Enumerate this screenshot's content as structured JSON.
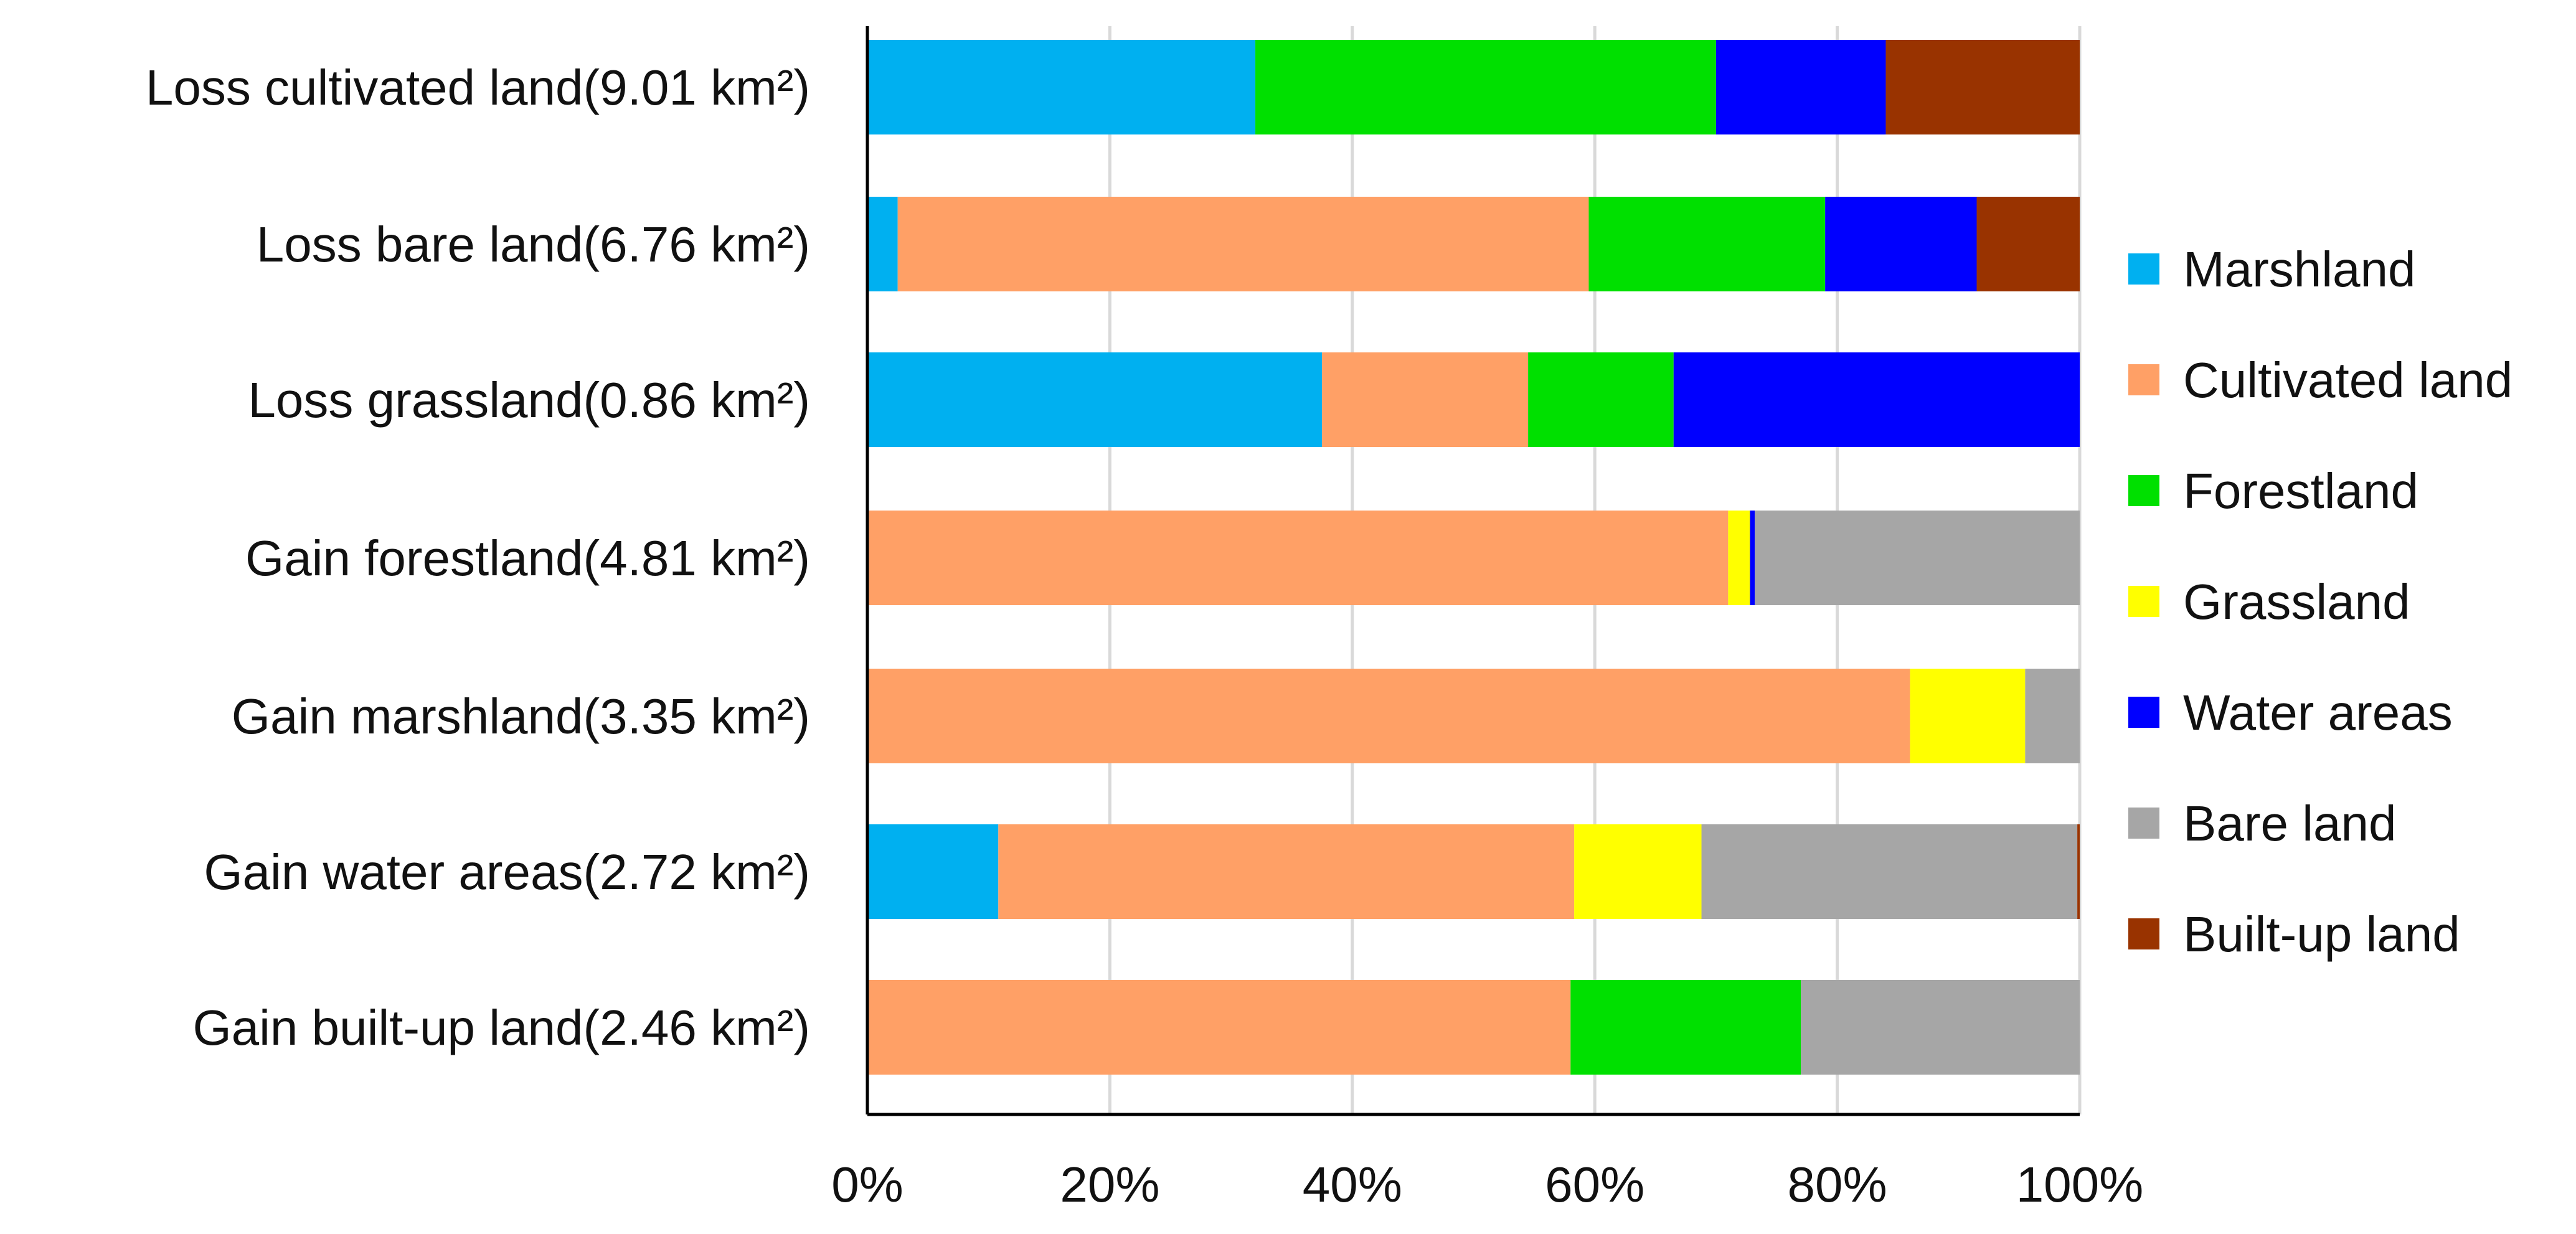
{
  "chart_data": {
    "type": "bar",
    "orientation": "horizontal",
    "stacked": "percent",
    "title": "",
    "xlabel": "",
    "ylabel": "",
    "xlim": [
      0,
      100
    ],
    "x_ticks": [
      "0%",
      "20%",
      "40%",
      "60%",
      "80%",
      "100%"
    ],
    "grid": "vertical",
    "legend_position": "right",
    "categories": [
      "Loss cultivated land(9.01 km²)",
      "Loss bare land(6.76 km²)",
      "Loss grassland(0.86 km²)",
      "Gain forestland(4.81 km²)",
      "Gain marshland(3.35 km²)",
      "Gain water areas(2.72 km²)",
      "Gain built-up land(2.46 km²)"
    ],
    "series": [
      {
        "name": "Marshland",
        "color": "#00B0F0",
        "values": [
          32,
          2.5,
          37.5,
          0,
          0,
          10.8,
          0
        ]
      },
      {
        "name": "Cultivated land",
        "color": "#FFA066",
        "values": [
          0,
          57,
          17,
          71,
          86,
          47.5,
          58
        ]
      },
      {
        "name": "Forestland",
        "color": "#00E000",
        "values": [
          38,
          19.5,
          12,
          0,
          0,
          0,
          19
        ]
      },
      {
        "name": "Grassland",
        "color": "#FFFF00",
        "values": [
          0,
          0,
          0,
          1.8,
          9.5,
          10.5,
          0
        ]
      },
      {
        "name": "Water areas",
        "color": "#0000FF",
        "values": [
          14,
          12.5,
          33.5,
          0.4,
          0,
          0,
          0
        ]
      },
      {
        "name": "Bare land",
        "color": "#A6A6A6",
        "values": [
          0,
          0,
          0,
          26.8,
          4.5,
          31,
          23
        ]
      },
      {
        "name": "Built-up land",
        "color": "#993300",
        "values": [
          16,
          8.5,
          0,
          0,
          0,
          0.2,
          0
        ]
      }
    ]
  }
}
